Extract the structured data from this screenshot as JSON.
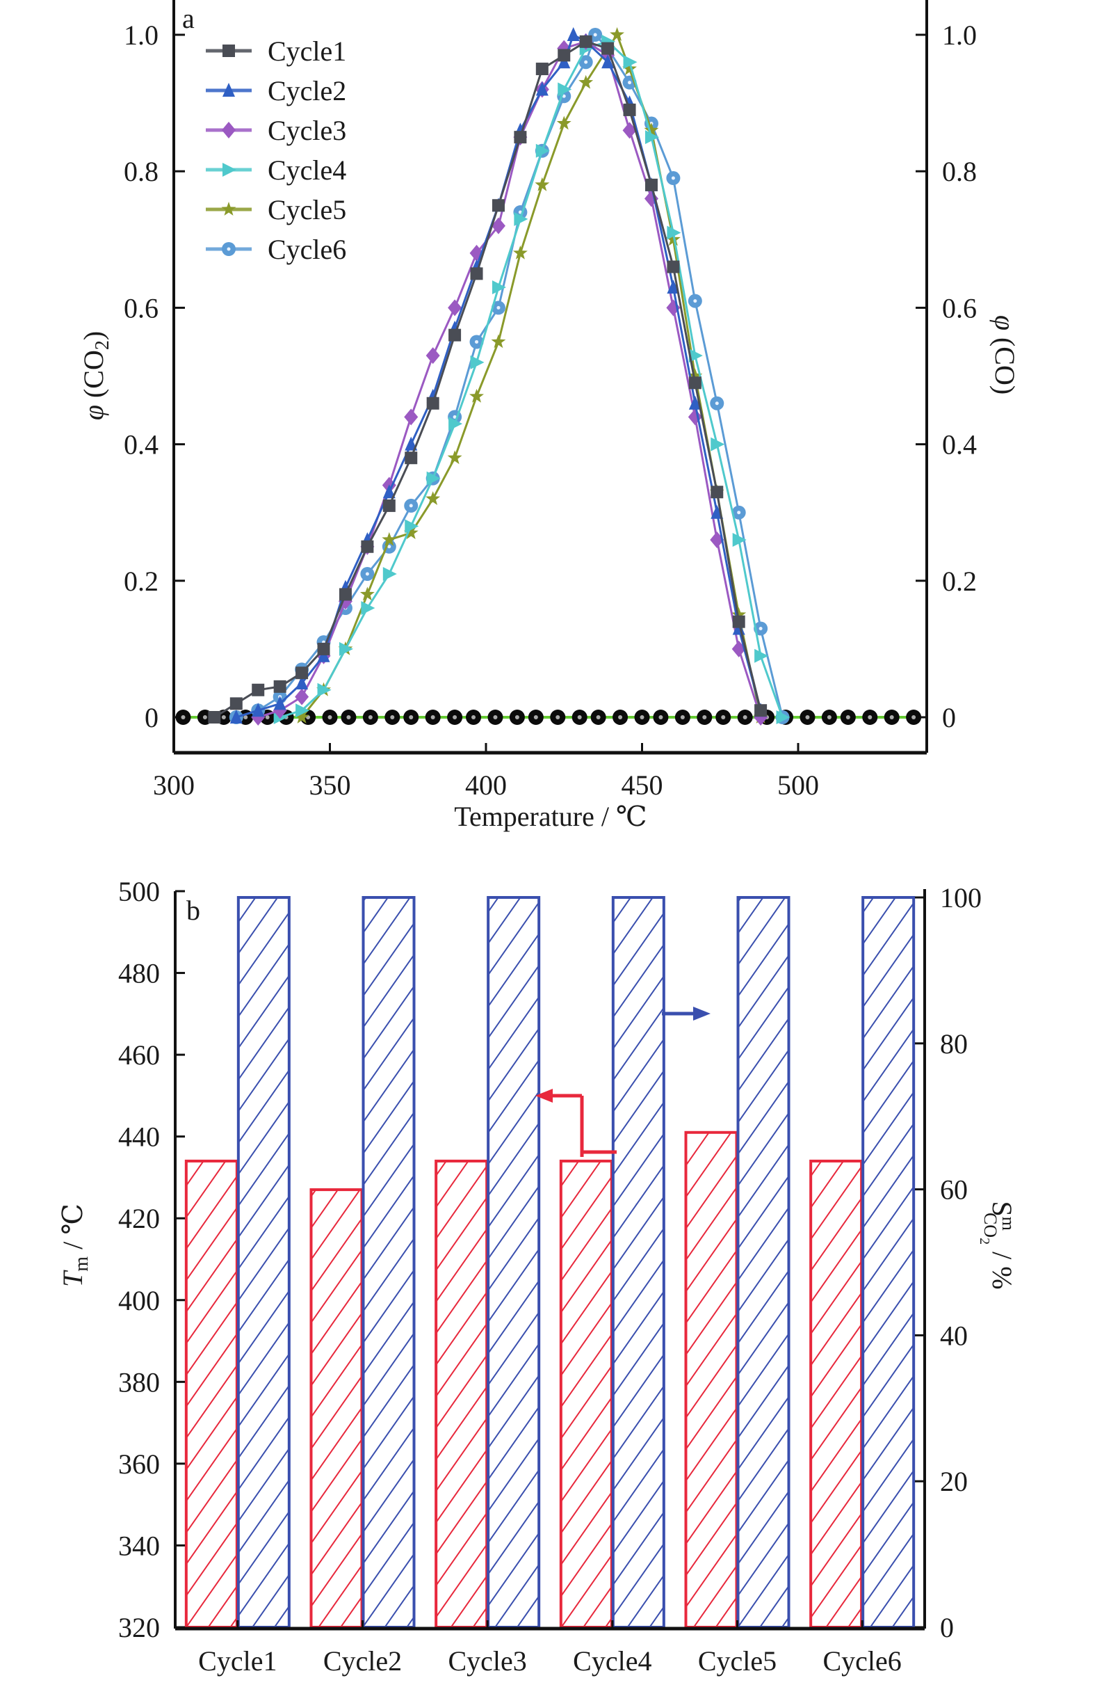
{
  "chart_data": [
    {
      "panel": "a",
      "type": "line",
      "title": "",
      "xlabel": "Temperature / ℃",
      "ylabel": "φ (CO2)",
      "ylabel_right": "φ (CO)",
      "xlim": [
        300,
        540
      ],
      "ylim": [
        -0.05,
        1.0
      ],
      "x_ticks": [
        300,
        350,
        400,
        450,
        500
      ],
      "y_ticks": [
        0,
        0.2,
        0.4,
        0.6,
        0.8,
        1.0
      ],
      "y_tick_labels": [
        "0",
        "0.2",
        "0.4",
        "0.6",
        "0.8",
        "1.0"
      ],
      "y_right_ticks": [
        0,
        0.2,
        0.4,
        0.6,
        0.8,
        1.0
      ],
      "y_right_tick_labels": [
        "0",
        "0.2",
        "0.4",
        "0.6",
        "0.8",
        "1.0"
      ],
      "grid": false,
      "legend_position": "top-left",
      "series": [
        {
          "name": "Cycle1",
          "color": "#4a4d55",
          "marker": "square",
          "x": [
            313,
            320,
            327,
            334,
            341,
            348,
            355,
            362,
            369,
            376,
            383,
            390,
            397,
            404,
            411,
            418,
            425,
            432,
            439,
            446,
            453,
            460,
            467,
            474,
            481,
            488
          ],
          "y": [
            0.0,
            0.02,
            0.04,
            0.045,
            0.065,
            0.1,
            0.18,
            0.25,
            0.31,
            0.38,
            0.46,
            0.56,
            0.65,
            0.75,
            0.85,
            0.95,
            0.97,
            0.99,
            0.98,
            0.89,
            0.78,
            0.66,
            0.49,
            0.33,
            0.14,
            0.01
          ]
        },
        {
          "name": "Cycle2",
          "color": "#2f5fc4",
          "marker": "triangle-up",
          "x": [
            320,
            327,
            334,
            341,
            348,
            355,
            362,
            369,
            376,
            383,
            390,
            397,
            404,
            411,
            418,
            425,
            428,
            432,
            439,
            446,
            453,
            460,
            467,
            474,
            481,
            488
          ],
          "y": [
            0.0,
            0.01,
            0.02,
            0.05,
            0.09,
            0.19,
            0.26,
            0.33,
            0.4,
            0.47,
            0.57,
            0.66,
            0.75,
            0.86,
            0.92,
            0.96,
            1.0,
            0.99,
            0.96,
            0.9,
            0.78,
            0.63,
            0.46,
            0.3,
            0.13,
            0.01
          ]
        },
        {
          "name": "Cycle3",
          "color": "#9b59c2",
          "marker": "diamond",
          "x": [
            327,
            334,
            341,
            348,
            355,
            362,
            369,
            376,
            383,
            390,
            397,
            404,
            411,
            418,
            425,
            432,
            439,
            446,
            453,
            460,
            467,
            474,
            481,
            488
          ],
          "y": [
            0.0,
            0.01,
            0.03,
            0.09,
            0.17,
            0.25,
            0.34,
            0.44,
            0.53,
            0.6,
            0.68,
            0.72,
            0.85,
            0.92,
            0.98,
            0.99,
            0.97,
            0.86,
            0.76,
            0.6,
            0.44,
            0.26,
            0.1,
            0.0
          ]
        },
        {
          "name": "Cycle4",
          "color": "#4fc9cc",
          "marker": "triangle-right",
          "x": [
            334,
            341,
            348,
            355,
            362,
            369,
            376,
            383,
            390,
            397,
            404,
            411,
            418,
            425,
            432,
            439,
            446,
            453,
            460,
            467,
            474,
            481,
            488,
            495
          ],
          "y": [
            0.0,
            0.01,
            0.04,
            0.1,
            0.16,
            0.21,
            0.28,
            0.35,
            0.43,
            0.52,
            0.63,
            0.73,
            0.83,
            0.92,
            0.98,
            0.99,
            0.96,
            0.85,
            0.71,
            0.53,
            0.4,
            0.26,
            0.09,
            0.0
          ]
        },
        {
          "name": "Cycle5",
          "color": "#8a9a2a",
          "marker": "star",
          "x": [
            341,
            348,
            355,
            362,
            369,
            376,
            383,
            390,
            397,
            404,
            411,
            418,
            425,
            432,
            439,
            442,
            446,
            453,
            460,
            467,
            474,
            481,
            488
          ],
          "y": [
            0.0,
            0.04,
            0.1,
            0.18,
            0.26,
            0.27,
            0.32,
            0.38,
            0.47,
            0.55,
            0.68,
            0.78,
            0.87,
            0.93,
            0.98,
            1.0,
            0.95,
            0.86,
            0.7,
            0.5,
            0.33,
            0.15,
            0.0
          ]
        },
        {
          "name": "Cycle6",
          "color": "#5b9bd5",
          "marker": "circle",
          "x": [
            320,
            327,
            334,
            341,
            348,
            355,
            362,
            369,
            376,
            383,
            390,
            397,
            404,
            411,
            418,
            425,
            432,
            435,
            439,
            446,
            453,
            460,
            467,
            474,
            481,
            488,
            495
          ],
          "y": [
            0.0,
            0.01,
            0.03,
            0.07,
            0.11,
            0.16,
            0.21,
            0.25,
            0.31,
            0.35,
            0.44,
            0.55,
            0.6,
            0.74,
            0.83,
            0.91,
            0.96,
            1.0,
            0.98,
            0.93,
            0.87,
            0.79,
            0.61,
            0.46,
            0.3,
            0.13,
            0.0
          ]
        },
        {
          "name": "CO",
          "color": "#66cc33",
          "marker": "circle-black",
          "axis": "right",
          "x": [
            303,
            310,
            316,
            323,
            330,
            336,
            343,
            350,
            356,
            363,
            370,
            376,
            383,
            390,
            396,
            403,
            410,
            416,
            423,
            430,
            436,
            443,
            450,
            456,
            463,
            470,
            476,
            483,
            490,
            496,
            503,
            510,
            516,
            523,
            530,
            537
          ],
          "y": [
            0,
            0,
            0,
            0,
            0,
            0,
            0,
            0,
            0,
            0,
            0,
            0,
            0,
            0,
            0,
            0,
            0,
            0,
            0,
            0,
            0,
            0,
            0,
            0,
            0,
            0,
            0,
            0,
            0,
            0,
            0,
            0,
            0,
            0,
            0,
            0
          ]
        }
      ],
      "annotations": [
        "a"
      ]
    },
    {
      "panel": "b",
      "type": "bar",
      "title": "",
      "xlabel": "",
      "ylabel": "T_m / ℃",
      "ylabel_right": "S^m_CO2 / %",
      "categories": [
        "Cycle1",
        "Cycle2",
        "Cycle3",
        "Cycle4",
        "Cycle5",
        "Cycle6"
      ],
      "ylim": [
        320,
        500
      ],
      "ylim_right": [
        0,
        100
      ],
      "y_ticks": [
        320,
        340,
        360,
        380,
        400,
        420,
        440,
        460,
        480,
        500
      ],
      "y_right_ticks": [
        0,
        20,
        40,
        60,
        80,
        100
      ],
      "grid": false,
      "series": [
        {
          "name": "T_m",
          "axis": "left",
          "color": "#e8283c",
          "pattern": "hatch",
          "values": [
            434,
            427,
            434,
            434,
            441,
            434
          ]
        },
        {
          "name": "S^m_CO2",
          "axis": "right",
          "color": "#3a4fae",
          "pattern": "hatch",
          "values": [
            100,
            100,
            100,
            100,
            100,
            100
          ]
        }
      ],
      "annotations": [
        "b",
        "left-arrow (red) indicates T_m axis",
        "right-arrow (blue) indicates S^m_CO2 axis"
      ]
    }
  ],
  "labels": {
    "panel_a": "a",
    "panel_b": "b",
    "a_xlabel": "Temperature / ℃",
    "a_ylabel_phi": "φ",
    "a_ylabel_left_rest": "(CO",
    "a_ylabel_left_sub": "2",
    "a_ylabel_left_close": ")",
    "a_ylabel_right_rest": "(CO)",
    "b_ylabel_T": "T",
    "b_ylabel_T_sub": "m",
    "b_ylabel_T_rest": " / ℃",
    "b_ylabel_S": "S",
    "b_ylabel_S_sup": "m",
    "b_ylabel_S_sub": "CO",
    "b_ylabel_S_subsub": "2",
    "b_ylabel_S_rest": " / %"
  }
}
